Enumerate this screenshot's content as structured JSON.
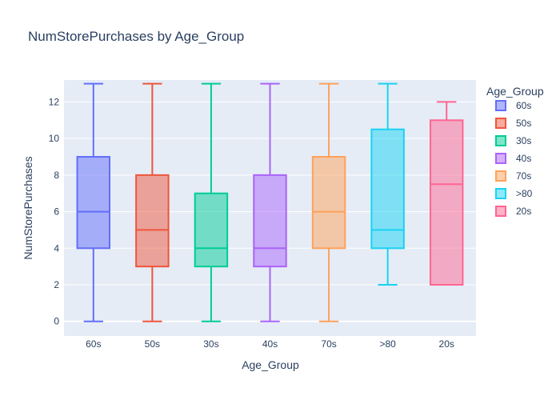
{
  "chart_data": {
    "type": "box",
    "title": "NumStorePurchases by Age_Group",
    "xlabel": "Age_Group",
    "ylabel": "NumStorePurchases",
    "ylim": [
      -0.8,
      13.2
    ],
    "yticks": [
      0,
      2,
      4,
      6,
      8,
      10,
      12
    ],
    "grid": true,
    "legend_title": "Age_Group",
    "legend_position": "right",
    "series": [
      {
        "name": "60s",
        "category": "60s",
        "color": "#636efa",
        "min": 0,
        "q1": 4,
        "median": 6,
        "q3": 9,
        "max": 13
      },
      {
        "name": "50s",
        "category": "50s",
        "color": "#EF553B",
        "min": 0,
        "q1": 3,
        "median": 5,
        "q3": 8,
        "max": 13
      },
      {
        "name": "30s",
        "category": "30s",
        "color": "#00cc96",
        "min": 0,
        "q1": 3,
        "median": 4,
        "q3": 7,
        "max": 13
      },
      {
        "name": "40s",
        "category": "40s",
        "color": "#ab63fa",
        "min": 0,
        "q1": 3,
        "median": 4,
        "q3": 8,
        "max": 13
      },
      {
        "name": "70s",
        "category": "70s",
        "color": "#FFA15A",
        "min": 0,
        "q1": 4,
        "median": 6,
        "q3": 9,
        "max": 13
      },
      {
        "name": ">80",
        "category": ">80",
        "color": "#19d3f3",
        "min": 2,
        "q1": 4,
        "median": 5,
        "q3": 10.5,
        "max": 13
      },
      {
        "name": "20s",
        "category": "20s",
        "color": "#FF6692",
        "min": 2,
        "q1": 2,
        "median": 7.5,
        "q3": 11,
        "max": 12
      }
    ]
  }
}
